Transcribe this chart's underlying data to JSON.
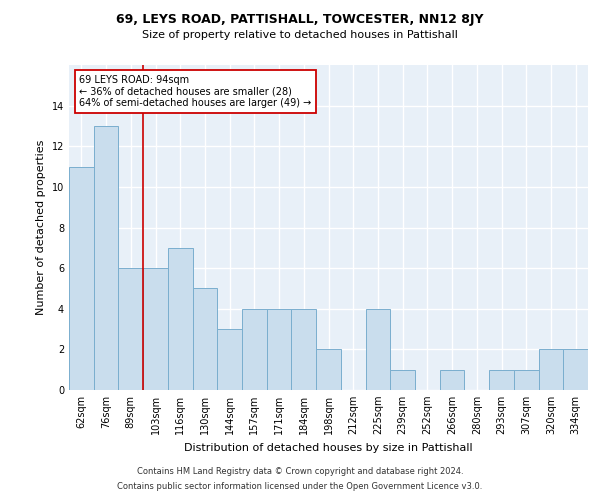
{
  "title1": "69, LEYS ROAD, PATTISHALL, TOWCESTER, NN12 8JY",
  "title2": "Size of property relative to detached houses in Pattishall",
  "xlabel": "Distribution of detached houses by size in Pattishall",
  "ylabel": "Number of detached properties",
  "categories": [
    "62sqm",
    "76sqm",
    "89sqm",
    "103sqm",
    "116sqm",
    "130sqm",
    "144sqm",
    "157sqm",
    "171sqm",
    "184sqm",
    "198sqm",
    "212sqm",
    "225sqm",
    "239sqm",
    "252sqm",
    "266sqm",
    "280sqm",
    "293sqm",
    "307sqm",
    "320sqm",
    "334sqm"
  ],
  "values": [
    11,
    13,
    6,
    6,
    7,
    5,
    3,
    4,
    4,
    4,
    2,
    0,
    4,
    1,
    0,
    1,
    0,
    1,
    1,
    2,
    2
  ],
  "bar_color": "#c9dded",
  "bar_edge_color": "#7aaece",
  "vline_x": 2.5,
  "vline_color": "#cc0000",
  "annotation_text": "69 LEYS ROAD: 94sqm\n← 36% of detached houses are smaller (28)\n64% of semi-detached houses are larger (49) →",
  "annotation_box_color": "#ffffff",
  "annotation_box_edge": "#cc0000",
  "ylim": [
    0,
    16
  ],
  "yticks": [
    0,
    2,
    4,
    6,
    8,
    10,
    12,
    14
  ],
  "footer1": "Contains HM Land Registry data © Crown copyright and database right 2024.",
  "footer2": "Contains public sector information licensed under the Open Government Licence v3.0.",
  "bg_color": "#e8f0f8",
  "grid_color": "#ffffff",
  "title1_fontsize": 9,
  "title2_fontsize": 8,
  "xlabel_fontsize": 8,
  "ylabel_fontsize": 8,
  "tick_fontsize": 7,
  "footer_fontsize": 6,
  "annotation_fontsize": 7
}
